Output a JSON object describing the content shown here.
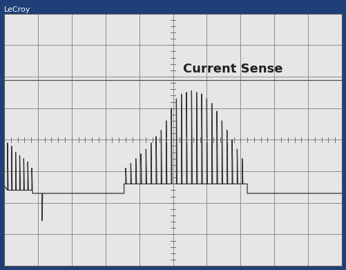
{
  "chart_data": {
    "type": "line",
    "title": "LeCroy",
    "annotations": [
      {
        "text": "Current Sense"
      }
    ],
    "series": [
      {
        "color": "#303030",
        "x": [
          -5.0,
          -4.9,
          -4.9,
          -4.88,
          -4.78,
          -4.78,
          -4.76,
          -4.66,
          -4.66,
          -4.64,
          -4.54,
          -4.54,
          -4.52,
          -4.42,
          -4.42,
          -4.4,
          -4.3,
          -4.3,
          -4.28,
          -4.18,
          -4.18,
          -4.16,
          -3.88,
          -3.88,
          -3.86,
          -1.45,
          -1.45,
          -1.4,
          -1.4,
          -1.38,
          -1.25,
          -1.25,
          -1.23,
          -1.1,
          -1.1,
          -1.08,
          -0.95,
          -0.95,
          -0.93,
          -0.8,
          -0.8,
          -0.78,
          -0.65,
          -0.65,
          -0.63,
          -0.5,
          -0.5,
          -0.48,
          -0.35,
          -0.35,
          -0.33,
          -0.2,
          -0.2,
          -0.18,
          -0.05,
          -0.05,
          -0.03,
          0.1,
          0.1,
          0.12,
          0.25,
          0.25,
          0.27,
          0.4,
          0.4,
          0.42,
          0.55,
          0.55,
          0.57,
          0.7,
          0.7,
          0.72,
          0.85,
          0.85,
          0.87,
          1.0,
          1.0,
          1.02,
          1.15,
          1.15,
          1.17,
          1.3,
          1.3,
          1.32,
          1.45,
          1.45,
          1.47,
          1.6,
          1.6,
          1.62,
          1.75,
          1.75,
          1.77,
          1.9,
          1.9,
          1.92,
          2.05,
          2.05,
          2.07,
          2.2,
          2.2,
          5.0
        ],
        "values": [
          -1.45,
          -1.6,
          -0.1,
          -1.6,
          -1.6,
          -0.2,
          -1.6,
          -1.6,
          -0.4,
          -1.6,
          -1.6,
          -0.5,
          -1.6,
          -1.6,
          -0.6,
          -1.6,
          -1.6,
          -0.7,
          -1.6,
          -1.6,
          -0.9,
          -1.7,
          -1.7,
          -2.57,
          -1.7,
          -1.7,
          -1.4,
          -1.4,
          -0.9,
          -1.4,
          -1.4,
          -0.75,
          -1.4,
          -1.4,
          -0.6,
          -1.4,
          -1.4,
          -0.45,
          -1.4,
          -1.4,
          -0.3,
          -1.4,
          -1.4,
          -0.1,
          -1.4,
          -1.4,
          0.1,
          -1.4,
          -1.4,
          0.3,
          -1.4,
          -1.4,
          0.6,
          -1.4,
          -1.4,
          1.0,
          -1.4,
          -1.4,
          1.3,
          -1.4,
          -1.4,
          1.45,
          -1.4,
          -1.4,
          1.5,
          -1.4,
          -1.4,
          1.55,
          -1.4,
          -1.4,
          1.5,
          -1.4,
          -1.4,
          1.45,
          -1.4,
          -1.4,
          1.3,
          -1.4,
          -1.4,
          1.15,
          -1.4,
          -1.4,
          0.9,
          -1.4,
          -1.4,
          0.6,
          -1.4,
          -1.4,
          0.3,
          -1.4,
          -1.4,
          0.0,
          -1.4,
          -1.4,
          -0.3,
          -1.4,
          -1.4,
          -0.6,
          -1.4,
          -1.4,
          -1.7,
          -1.7
        ]
      },
      {
        "color": "#505050",
        "x": [
          -5.0,
          5.0
        ],
        "values": [
          1.9,
          1.9
        ]
      }
    ],
    "xlim": [
      -5,
      5
    ],
    "ylim": [
      -4,
      4
    ],
    "xticks": [
      -5,
      -4,
      -3,
      -2,
      -1,
      0,
      1,
      2,
      3,
      4,
      5
    ],
    "yticks": [
      -4,
      -3,
      -2,
      -1,
      0,
      1,
      2,
      3,
      4
    ],
    "grid": true,
    "tick_labels": false
  }
}
